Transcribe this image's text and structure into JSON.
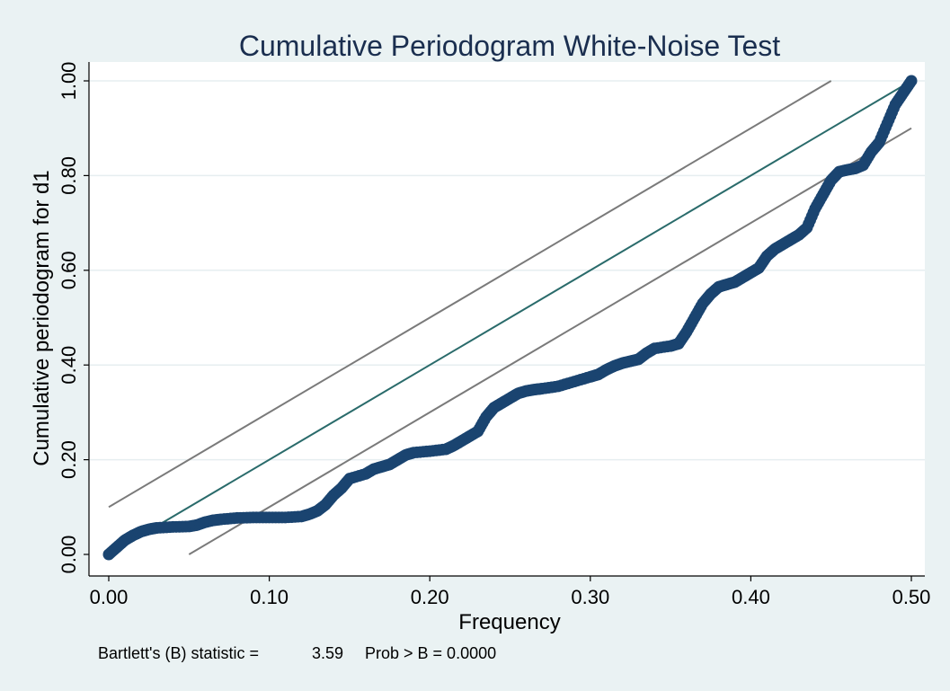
{
  "chart_data": {
    "type": "scatter",
    "title": "Cumulative Periodogram White-Noise Test",
    "xlabel": "Frequency",
    "ylabel": "Cumulative periodogram for d1",
    "xlim": [
      0,
      0.5
    ],
    "ylim": [
      0,
      1
    ],
    "x_ticks": [
      "0.00",
      "0.10",
      "0.20",
      "0.30",
      "0.40",
      "0.50"
    ],
    "y_ticks": [
      "0.00",
      "0.20",
      "0.40",
      "0.60",
      "0.80",
      "1.00"
    ],
    "grid": "horizontal",
    "legend": "none",
    "note": {
      "label": "Bartlett's (B) statistic =",
      "value": "3.59",
      "prob": "Prob > B = 0.0000"
    },
    "reference_lines": [
      {
        "role": "expected",
        "x": [
          0,
          0.5
        ],
        "y": [
          0,
          1
        ],
        "color": "#2a6b6b"
      },
      {
        "role": "upper-band",
        "x": [
          0,
          0.45
        ],
        "y": [
          0.1,
          1.0
        ],
        "color": "#7a7a7a"
      },
      {
        "role": "lower-band",
        "x": [
          0.05,
          0.5
        ],
        "y": [
          0.0,
          0.9
        ],
        "color": "#7a7a7a"
      }
    ],
    "marker_color": "#1a4470",
    "series": [
      {
        "x": [
          0.0,
          0.005,
          0.01,
          0.015,
          0.02,
          0.025,
          0.03,
          0.04,
          0.05,
          0.055,
          0.06,
          0.065,
          0.07,
          0.08,
          0.09,
          0.1,
          0.11,
          0.12,
          0.125,
          0.13,
          0.135,
          0.14,
          0.145,
          0.15,
          0.16,
          0.165,
          0.17,
          0.175,
          0.18,
          0.185,
          0.19,
          0.2,
          0.21,
          0.215,
          0.22,
          0.225,
          0.23,
          0.235,
          0.24,
          0.245,
          0.25,
          0.255,
          0.26,
          0.265,
          0.27,
          0.28,
          0.29,
          0.3,
          0.305,
          0.31,
          0.315,
          0.32,
          0.325,
          0.33,
          0.335,
          0.34,
          0.35,
          0.355,
          0.36,
          0.365,
          0.37,
          0.375,
          0.38,
          0.385,
          0.39,
          0.395,
          0.4,
          0.405,
          0.41,
          0.415,
          0.42,
          0.425,
          0.43,
          0.435,
          0.44,
          0.445,
          0.45,
          0.455,
          0.46,
          0.465,
          0.47,
          0.475,
          0.48,
          0.485,
          0.49,
          0.495,
          0.5
        ],
        "y": [
          0.0,
          0.015,
          0.03,
          0.04,
          0.048,
          0.053,
          0.056,
          0.058,
          0.059,
          0.062,
          0.068,
          0.072,
          0.074,
          0.077,
          0.078,
          0.078,
          0.078,
          0.08,
          0.085,
          0.092,
          0.105,
          0.125,
          0.14,
          0.16,
          0.17,
          0.18,
          0.185,
          0.19,
          0.2,
          0.21,
          0.215,
          0.218,
          0.222,
          0.23,
          0.24,
          0.25,
          0.26,
          0.29,
          0.31,
          0.32,
          0.33,
          0.34,
          0.345,
          0.348,
          0.35,
          0.355,
          0.365,
          0.375,
          0.38,
          0.39,
          0.398,
          0.404,
          0.408,
          0.412,
          0.425,
          0.435,
          0.44,
          0.445,
          0.47,
          0.5,
          0.53,
          0.55,
          0.565,
          0.57,
          0.575,
          0.585,
          0.595,
          0.605,
          0.63,
          0.645,
          0.655,
          0.665,
          0.675,
          0.69,
          0.73,
          0.76,
          0.79,
          0.808,
          0.812,
          0.815,
          0.822,
          0.85,
          0.87,
          0.91,
          0.95,
          0.975,
          1.0
        ]
      }
    ]
  }
}
